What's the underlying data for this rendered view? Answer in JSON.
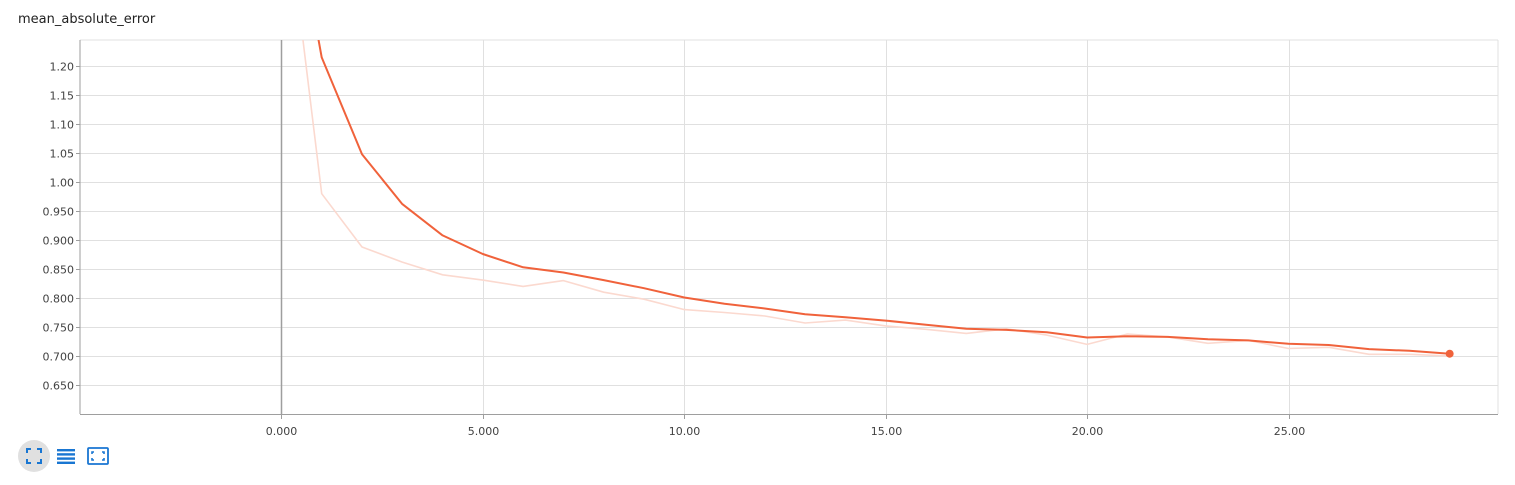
{
  "chart_data": {
    "type": "line",
    "title": "mean_absolute_error",
    "xlabel": "",
    "ylabel": "",
    "xlim": [
      -5.0,
      30.2
    ],
    "ylim": [
      0.6,
      1.245
    ],
    "x_ticks": [
      0,
      5,
      10,
      15,
      20,
      25
    ],
    "x_tick_labels": [
      "0.000",
      "5.000",
      "10.00",
      "15.00",
      "20.00",
      "25.00"
    ],
    "y_ticks": [
      0.65,
      0.7,
      0.75,
      0.8,
      0.85,
      0.9,
      0.95,
      1.0,
      1.05,
      1.1,
      1.15,
      1.2
    ],
    "y_tick_labels": [
      "0.650",
      "0.700",
      "0.750",
      "0.800",
      "0.850",
      "0.900",
      "0.950",
      "1.00",
      "1.05",
      "1.10",
      "1.15",
      "1.20"
    ],
    "grid": true,
    "series": [
      {
        "role": "raw",
        "color": "#fbd9cf",
        "x": [
          0,
          1,
          2,
          3,
          4,
          5,
          6,
          7,
          8,
          9,
          10,
          11,
          12,
          13,
          14,
          15,
          16,
          17,
          18,
          19,
          20,
          21,
          22,
          23,
          24,
          25,
          26,
          27,
          28,
          29
        ],
        "y": [
          1.55,
          0.98,
          0.888,
          0.862,
          0.84,
          0.831,
          0.82,
          0.83,
          0.81,
          0.798,
          0.78,
          0.775,
          0.769,
          0.757,
          0.762,
          0.752,
          0.746,
          0.739,
          0.747,
          0.736,
          0.72,
          0.738,
          0.733,
          0.722,
          0.727,
          0.713,
          0.715,
          0.703,
          0.703,
          0.7
        ]
      },
      {
        "role": "smoothed",
        "color": "#f0623b",
        "x": [
          0,
          1,
          2,
          3,
          4,
          5,
          6,
          7,
          8,
          9,
          10,
          11,
          12,
          13,
          14,
          15,
          16,
          17,
          18,
          19,
          20,
          21,
          22,
          23,
          24,
          25,
          26,
          27,
          28,
          29
        ],
        "y": [
          1.6,
          1.215,
          1.048,
          0.962,
          0.908,
          0.876,
          0.853,
          0.844,
          0.831,
          0.817,
          0.801,
          0.79,
          0.782,
          0.772,
          0.767,
          0.761,
          0.754,
          0.747,
          0.745,
          0.741,
          0.732,
          0.734,
          0.733,
          0.729,
          0.727,
          0.721,
          0.719,
          0.712,
          0.709,
          0.704
        ]
      }
    ]
  },
  "toolbar": {
    "buttons": [
      {
        "name": "expand-chart-icon",
        "active": true
      },
      {
        "name": "toggle-log-scale-icon",
        "active": false
      },
      {
        "name": "fit-domain-icon",
        "active": false
      }
    ]
  },
  "colors": {
    "accent": "#1976d2",
    "grid": "#e0e0e0",
    "zero_axis": "#9e9e9e"
  }
}
